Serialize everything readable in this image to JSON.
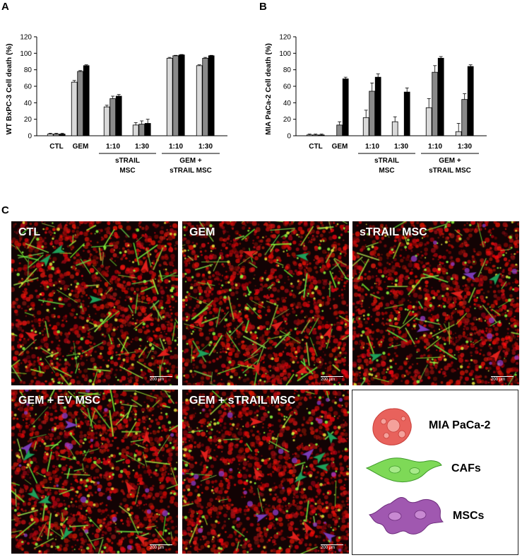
{
  "panels": {
    "a": {
      "letter": "A"
    },
    "b": {
      "letter": "B"
    },
    "c": {
      "letter": "C"
    }
  },
  "chart_data": [
    {
      "type": "bar",
      "ylabel": "WT BxPC-3 Cell death (%)",
      "ylim": [
        0,
        120
      ],
      "yticks": [
        "0",
        "20",
        "40",
        "60",
        "80",
        "100",
        "120"
      ],
      "groups": [
        {
          "label": "CTL",
          "values": [
            2,
            2,
            2
          ],
          "errors": [
            1,
            1,
            1
          ]
        },
        {
          "label": "GEM",
          "values": [
            65,
            78,
            85
          ],
          "errors": [
            2,
            1,
            1
          ]
        },
        {
          "label": "1:10",
          "values": [
            35,
            45,
            48
          ],
          "errors": [
            2,
            3,
            2
          ]
        },
        {
          "label": "1:30",
          "values": [
            13,
            14,
            15
          ],
          "errors": [
            3,
            4,
            5
          ]
        },
        {
          "label": "1:10",
          "values": [
            94,
            97,
            98
          ],
          "errors": [
            1,
            0.5,
            0.5
          ]
        },
        {
          "label": "1:30",
          "values": [
            85,
            94,
            97
          ],
          "errors": [
            1,
            1,
            0.5
          ]
        }
      ],
      "brackets": [
        {
          "label": "sTRAIL MSC",
          "lines": [
            "sTRAIL",
            "MSC"
          ],
          "from": 2,
          "to": 3
        },
        {
          "label": "GEM + sTRAIL MSC",
          "lines": [
            "GEM +",
            "sTRAIL MSC"
          ],
          "from": 4,
          "to": 5
        }
      ],
      "series_colors": [
        "#d9d9d9",
        "#8a8a8a",
        "#000000"
      ]
    },
    {
      "type": "bar",
      "ylabel": "MIA PaCa-2 Cell death (%)",
      "ylim": [
        0,
        120
      ],
      "yticks": [
        "0",
        "20",
        "40",
        "60",
        "80",
        "100",
        "120"
      ],
      "groups": [
        {
          "label": "CTL",
          "values": [
            1,
            1,
            1
          ],
          "errors": [
            1,
            1,
            1
          ]
        },
        {
          "label": "GEM",
          "values": [
            0,
            13,
            69
          ],
          "errors": [
            0,
            4,
            2
          ]
        },
        {
          "label": "1:10",
          "values": [
            22,
            54,
            71
          ],
          "errors": [
            9,
            10,
            4
          ]
        },
        {
          "label": "1:30",
          "values": [
            17,
            0,
            53
          ],
          "errors": [
            6,
            0,
            5
          ]
        },
        {
          "label": "1:10",
          "values": [
            34,
            77,
            94
          ],
          "errors": [
            11,
            8,
            2
          ]
        },
        {
          "label": "1:30",
          "values": [
            5,
            44,
            84
          ],
          "errors": [
            10,
            7,
            2
          ]
        }
      ],
      "brackets": [
        {
          "label": "sTRAIL MSC",
          "lines": [
            "sTRAIL",
            "MSC"
          ],
          "from": 2,
          "to": 3
        },
        {
          "label": "GEM + sTRAIL MSC",
          "lines": [
            "GEM +",
            "sTRAIL MSC"
          ],
          "from": 4,
          "to": 5
        }
      ],
      "series_colors": [
        "#d9d9d9",
        "#8a8a8a",
        "#000000"
      ]
    }
  ],
  "micrographs": [
    {
      "label": "CTL",
      "scale": "200 μm",
      "seed": 11,
      "green_level": "high",
      "purple_level": "none",
      "framed": false,
      "arrows": [
        {
          "color": "red",
          "count": 4
        },
        {
          "color": "green",
          "count": 3
        }
      ]
    },
    {
      "label": "GEM",
      "scale": "200 μm",
      "seed": 23,
      "green_level": "high",
      "purple_level": "none",
      "framed": false,
      "arrows": [
        {
          "color": "red",
          "count": 6
        },
        {
          "color": "green",
          "count": 2
        }
      ]
    },
    {
      "label": "sTRAIL MSC",
      "scale": "200 μm",
      "seed": 37,
      "green_level": "medium",
      "purple_level": "low",
      "framed": false,
      "arrows": [
        {
          "color": "red",
          "count": 2
        },
        {
          "color": "green",
          "count": 2
        },
        {
          "color": "purple",
          "count": 2
        }
      ]
    },
    {
      "label": "GEM + EV MSC",
      "scale": "200 μm",
      "seed": 41,
      "green_level": "high",
      "purple_level": "medium",
      "framed": true,
      "arrows": [
        {
          "color": "red",
          "count": 3
        },
        {
          "color": "green",
          "count": 4
        },
        {
          "color": "purple",
          "count": 2
        }
      ]
    },
    {
      "label": "GEM + sTRAIL MSC",
      "scale": "200 μm",
      "seed": 53,
      "green_level": "low",
      "purple_level": "medium",
      "framed": false,
      "arrows": [
        {
          "color": "red",
          "count": 5
        },
        {
          "color": "green",
          "count": 4
        },
        {
          "color": "purple",
          "count": 3
        }
      ]
    }
  ],
  "cell_legend": [
    {
      "label": "MIA PaCa-2",
      "icon": "tumor-cell-icon",
      "color": "#e8625c"
    },
    {
      "label": "CAFs",
      "icon": "fibroblast-icon",
      "color": "#7ed957"
    },
    {
      "label": "MSCs",
      "icon": "mesenchymal-cell-icon",
      "color": "#a058b0"
    }
  ]
}
